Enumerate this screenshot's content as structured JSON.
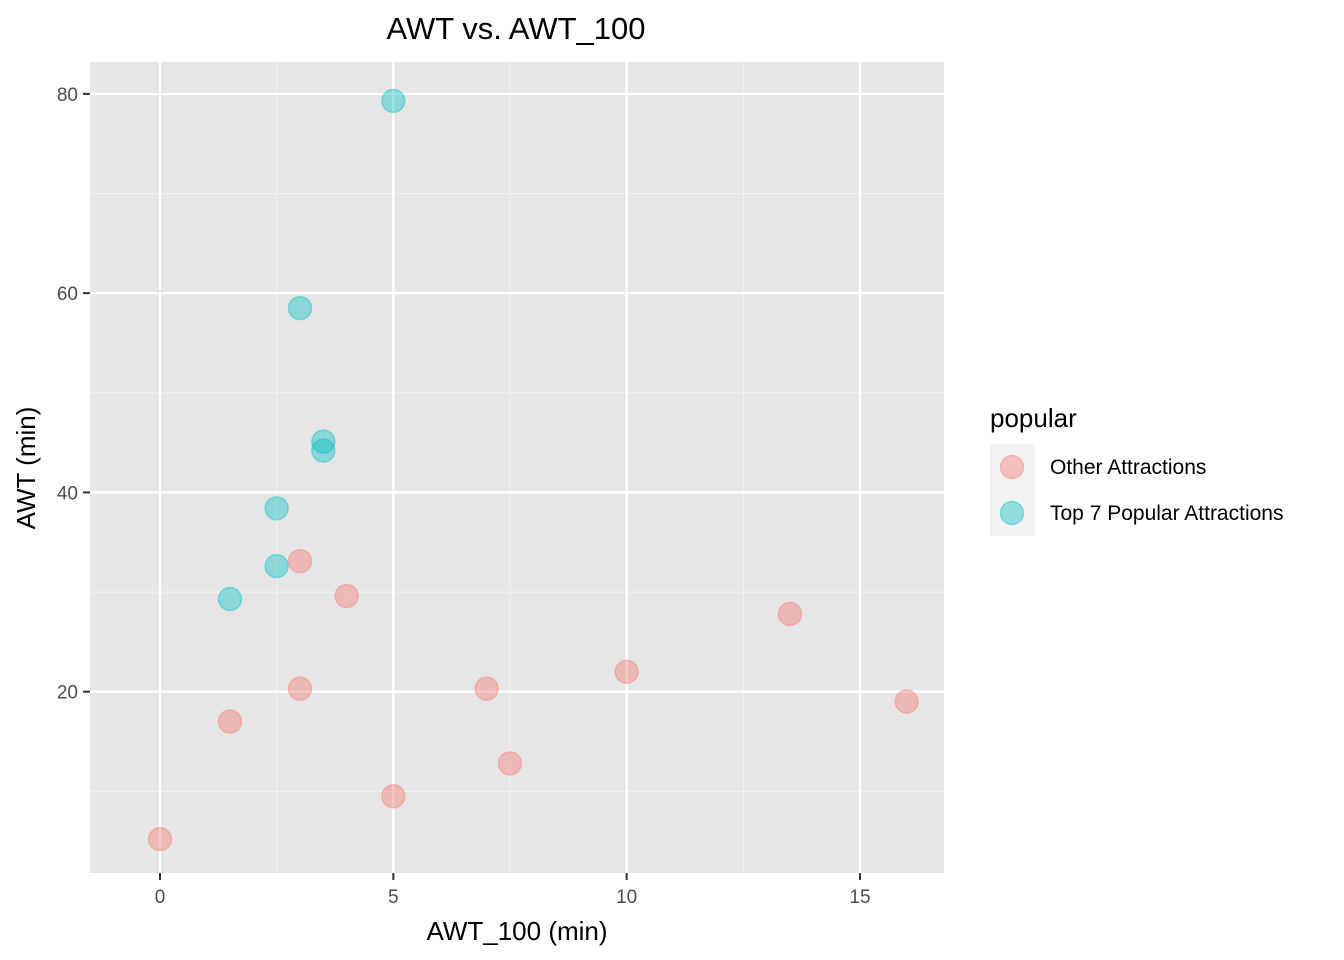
{
  "chart_data": {
    "type": "scatter",
    "title": "AWT vs. AWT_100",
    "xlabel": "AWT_100 (min)",
    "ylabel": "AWT (min)",
    "xlim": [
      -1.5,
      16.8
    ],
    "ylim": [
      1.8,
      83.2
    ],
    "x_ticks": [
      0,
      5,
      10,
      15
    ],
    "y_ticks": [
      20,
      40,
      60,
      80
    ],
    "grid": true,
    "legend": {
      "title": "popular",
      "position": "right"
    },
    "series": [
      {
        "name": "Other Attractions",
        "color": "#F8766D",
        "points": [
          {
            "x": 0,
            "y": 5.2
          },
          {
            "x": 1.5,
            "y": 17.0
          },
          {
            "x": 3.0,
            "y": 33.1
          },
          {
            "x": 3.0,
            "y": 20.3
          },
          {
            "x": 4.0,
            "y": 29.6
          },
          {
            "x": 5.0,
            "y": 9.5
          },
          {
            "x": 7.0,
            "y": 20.3
          },
          {
            "x": 7.5,
            "y": 12.8
          },
          {
            "x": 10.0,
            "y": 22.0
          },
          {
            "x": 13.5,
            "y": 27.8
          },
          {
            "x": 16.0,
            "y": 19.0
          }
        ]
      },
      {
        "name": "Top 7 Popular Attractions",
        "color": "#00BFC4",
        "points": [
          {
            "x": 1.5,
            "y": 29.3
          },
          {
            "x": 2.5,
            "y": 38.4
          },
          {
            "x": 2.5,
            "y": 32.6
          },
          {
            "x": 3.0,
            "y": 58.5
          },
          {
            "x": 3.5,
            "y": 45.1
          },
          {
            "x": 3.5,
            "y": 44.2
          },
          {
            "x": 5.0,
            "y": 79.3
          }
        ]
      }
    ]
  }
}
